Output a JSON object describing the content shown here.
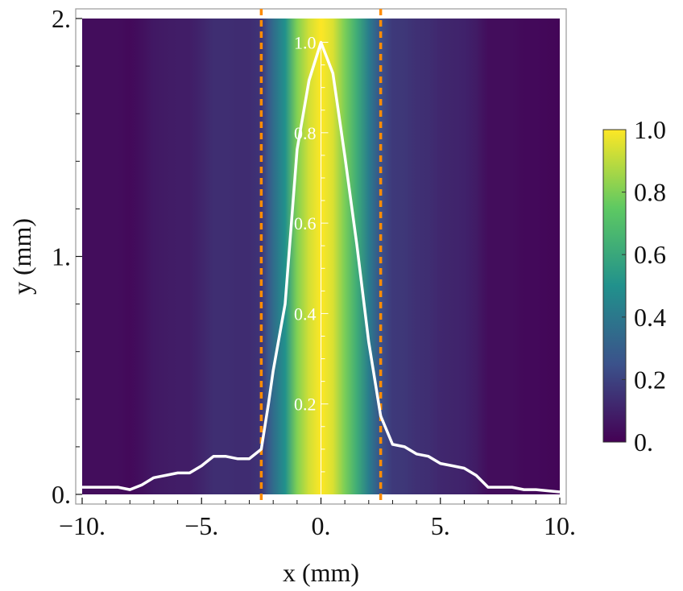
{
  "chart_data": {
    "type": "heatmap",
    "xlabel": "x (mm)",
    "ylabel": "y (mm)",
    "xlim": [
      -10,
      10
    ],
    "ylim": [
      0,
      2
    ],
    "x_ticks": [
      "−10.",
      "−5.",
      "0.",
      "5.",
      "10."
    ],
    "x_tick_values": [
      -10,
      -5,
      0,
      5,
      10
    ],
    "y_ticks": [
      "0.",
      "1.",
      "2."
    ],
    "y_tick_values": [
      0,
      1,
      2
    ],
    "colormap": [
      "#440154",
      "#3b528b",
      "#21918c",
      "#5ec962",
      "#fde725"
    ],
    "intensity_profile": {
      "x": [
        -10,
        -9,
        -8.5,
        -8,
        -7.5,
        -7,
        -6.5,
        -6,
        -5.5,
        -5,
        -4.5,
        -4,
        -3.5,
        -3,
        -2.5,
        -2.2,
        -2,
        -1.5,
        -1,
        -0.5,
        0,
        0.5,
        1,
        1.5,
        2,
        2.5,
        3,
        3.5,
        4,
        4.5,
        5,
        5.5,
        6,
        6.5,
        7,
        7.5,
        8,
        8.5,
        9,
        10
      ],
      "y": [
        0.03,
        0.03,
        0.03,
        0.02,
        0.04,
        0.07,
        0.08,
        0.09,
        0.09,
        0.12,
        0.16,
        0.16,
        0.15,
        0.15,
        0.19,
        0.38,
        0.52,
        0.8,
        1.45,
        1.74,
        1.9,
        1.77,
        1.42,
        1.05,
        0.64,
        0.33,
        0.21,
        0.2,
        0.17,
        0.16,
        0.13,
        0.12,
        0.11,
        0.08,
        0.03,
        0.03,
        0.03,
        0.02,
        0.02,
        0.01
      ],
      "color": "#ffffff"
    },
    "inner_axis": {
      "ticks": [
        "0.2",
        "0.4",
        "0.6",
        "0.8",
        "1.0"
      ],
      "tick_values": [
        0.2,
        0.4,
        0.6,
        0.8,
        1.0
      ]
    },
    "markers": {
      "x": [
        -2.5,
        2.5
      ],
      "color": "#ff8c00",
      "style": "dashed"
    },
    "colorbar": {
      "ticks": [
        "0.",
        "0.2",
        "0.4",
        "0.6",
        "0.8",
        "1.0"
      ],
      "tick_values": [
        0,
        0.2,
        0.4,
        0.6,
        0.8,
        1.0
      ]
    }
  }
}
